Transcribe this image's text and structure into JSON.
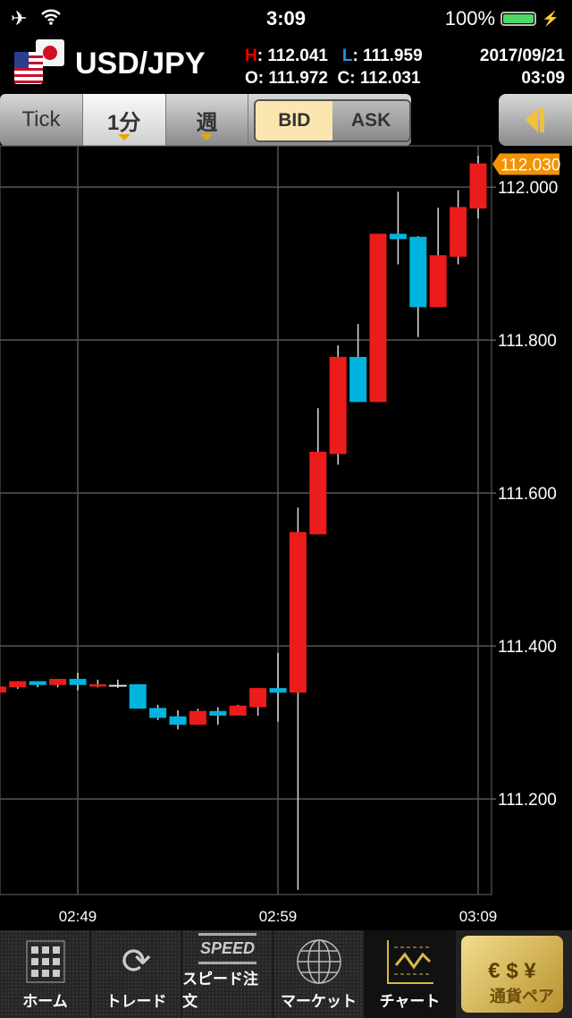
{
  "status_bar": {
    "time": "3:09",
    "battery": "100%",
    "icons": [
      "airplane-icon",
      "wifi-icon",
      "battery-icon",
      "charging-icon"
    ]
  },
  "header": {
    "pair": "USD/JPY",
    "high_label": "H",
    "high": "112.041",
    "low_label": "L",
    "low": "111.959",
    "open_label": "O",
    "open": "111.972",
    "close_label": "C",
    "close": "112.031",
    "date": "2017/09/21",
    "time": "03:09"
  },
  "toolbar": {
    "tick": "Tick",
    "interval": "1分",
    "period": "週",
    "bid": "BID",
    "ask": "ASK",
    "selected_price": "BID"
  },
  "colors": {
    "up": "#ec1c1c",
    "down": "#00b4e0",
    "current_price_tag": "#f39200",
    "grid": "#555555"
  },
  "chart_data": {
    "type": "candlestick",
    "current_price": "112.030",
    "y_ticks": [
      "112.000",
      "111.800",
      "111.600",
      "111.400",
      "111.200"
    ],
    "x_ticks": [
      "02:49",
      "02:59",
      "03:09"
    ],
    "ylim": [
      111.075,
      112.054
    ],
    "grid": true,
    "candles": [
      {
        "t": "02:45",
        "o": 111.339,
        "h": 111.347,
        "l": 111.339,
        "c": 111.347
      },
      {
        "t": "02:46",
        "o": 111.346,
        "h": 111.354,
        "l": 111.344,
        "c": 111.354
      },
      {
        "t": "02:47",
        "o": 111.354,
        "h": 111.354,
        "l": 111.346,
        "c": 111.349
      },
      {
        "t": "02:48",
        "o": 111.349,
        "h": 111.357,
        "l": 111.346,
        "c": 111.357
      },
      {
        "t": "02:49",
        "o": 111.357,
        "h": 111.365,
        "l": 111.342,
        "c": 111.349
      },
      {
        "t": "02:50",
        "o": 111.347,
        "h": 111.356,
        "l": 111.346,
        "c": 111.35
      },
      {
        "t": "02:51",
        "o": 111.348,
        "h": 111.356,
        "l": 111.345,
        "c": 111.348
      },
      {
        "t": "02:52",
        "o": 111.35,
        "h": 111.35,
        "l": 111.318,
        "c": 111.318
      },
      {
        "t": "02:53",
        "o": 111.319,
        "h": 111.323,
        "l": 111.303,
        "c": 111.306
      },
      {
        "t": "02:54",
        "o": 111.308,
        "h": 111.316,
        "l": 111.291,
        "c": 111.297
      },
      {
        "t": "02:55",
        "o": 111.297,
        "h": 111.318,
        "l": 111.297,
        "c": 111.315
      },
      {
        "t": "02:56",
        "o": 111.315,
        "h": 111.32,
        "l": 111.297,
        "c": 111.309
      },
      {
        "t": "02:57",
        "o": 111.309,
        "h": 111.323,
        "l": 111.309,
        "c": 111.322
      },
      {
        "t": "02:58",
        "o": 111.32,
        "h": 111.345,
        "l": 111.309,
        "c": 111.345
      },
      {
        "t": "02:59",
        "o": 111.345,
        "h": 111.391,
        "l": 111.301,
        "c": 111.339
      },
      {
        "t": "03:00",
        "o": 111.339,
        "h": 111.581,
        "l": 111.081,
        "c": 111.549
      },
      {
        "t": "03:01",
        "o": 111.546,
        "h": 111.711,
        "l": 111.546,
        "c": 111.654
      },
      {
        "t": "03:02",
        "o": 111.651,
        "h": 111.793,
        "l": 111.637,
        "c": 111.778
      },
      {
        "t": "03:03",
        "o": 111.778,
        "h": 111.821,
        "l": 111.719,
        "c": 111.719
      },
      {
        "t": "03:04",
        "o": 111.719,
        "h": 111.939,
        "l": 111.719,
        "c": 111.939
      },
      {
        "t": "03:05",
        "o": 111.939,
        "h": 111.994,
        "l": 111.899,
        "c": 111.932
      },
      {
        "t": "03:06",
        "o": 111.935,
        "h": 111.936,
        "l": 111.804,
        "c": 111.843
      },
      {
        "t": "03:07",
        "o": 111.843,
        "h": 111.973,
        "l": 111.843,
        "c": 111.911
      },
      {
        "t": "03:08",
        "o": 111.909,
        "h": 111.996,
        "l": 111.899,
        "c": 111.974
      },
      {
        "t": "03:09",
        "o": 111.972,
        "h": 112.041,
        "l": 111.959,
        "c": 112.031
      }
    ]
  },
  "tabbar": {
    "items": [
      {
        "label": "ホーム",
        "icon": "home-grid-icon"
      },
      {
        "label": "トレード",
        "icon": "trade-arrows-icon"
      },
      {
        "label": "スピード注文",
        "icon": "speed-order-icon",
        "icon_text": "SPEED"
      },
      {
        "label": "マーケット",
        "icon": "globe-icon"
      },
      {
        "label": "チャート",
        "icon": "chart-icon",
        "active": true
      },
      {
        "label": "通貨ペア",
        "icon": "currency-pair-icon",
        "symbols": "€ $ ¥"
      }
    ]
  }
}
